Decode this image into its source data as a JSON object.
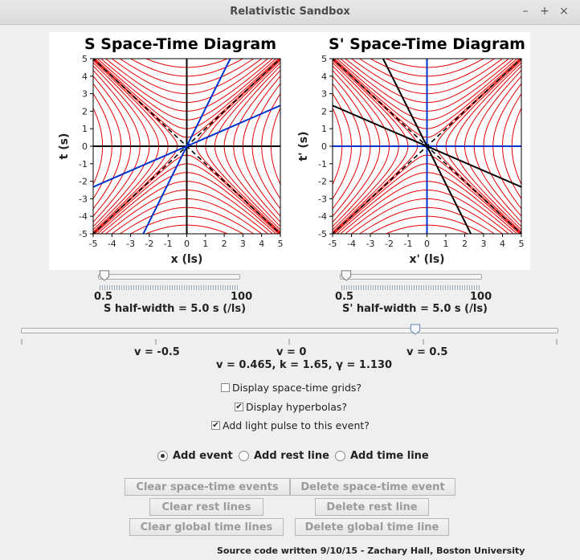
{
  "window": {
    "title": "Relativistic Sandbox",
    "controls": [
      "–",
      "+",
      "×"
    ]
  },
  "colors": {
    "hyperbola": "#e60000",
    "blue_axis": "#0033cc",
    "black_axis": "#000000",
    "frame": "#ffffff"
  },
  "chart_data": [
    {
      "type": "line",
      "title": "S Space-Time Diagram",
      "xlabel": "x (ls)",
      "ylabel": "t (s)",
      "xlim": [
        -5,
        5
      ],
      "ylim": [
        -5,
        5
      ],
      "xticks": [
        "-5",
        "-4",
        "-3",
        "-2",
        "-1",
        "0",
        "1",
        "2",
        "3",
        "4",
        "5"
      ],
      "yticks": [
        "5",
        "4",
        "3",
        "2",
        "1",
        "0",
        "-1",
        "-2",
        "-3",
        "-4",
        "-5"
      ],
      "velocity": 0.465,
      "hyperbola_levels": [
        0.5,
        1,
        1.5,
        2,
        2.5,
        3,
        3.5,
        4,
        4.5
      ],
      "light_cone": "dashed-black",
      "rest_axes": "black",
      "moving_axes": "blue"
    },
    {
      "type": "line",
      "title": "S' Space-Time Diagram",
      "xlabel": "x' (ls)",
      "ylabel": "t' (s)",
      "xlim": [
        -5,
        5
      ],
      "ylim": [
        -5,
        5
      ],
      "xticks": [
        "-5",
        "-4",
        "-3",
        "-2",
        "-1",
        "0",
        "1",
        "2",
        "3",
        "4",
        "5"
      ],
      "yticks": [
        "5",
        "4",
        "3",
        "2",
        "1",
        "0",
        "-1",
        "-2",
        "-3",
        "-4",
        "-5"
      ],
      "velocity": -0.465,
      "hyperbola_levels": [
        0.5,
        1,
        1.5,
        2,
        2.5,
        3,
        3.5,
        4,
        4.5
      ],
      "light_cone": "dashed-black",
      "rest_axes": "blue",
      "moving_axes": "black"
    }
  ],
  "sliders": {
    "s_halfwidth": {
      "min_label": "0.5",
      "max_label": "100",
      "caption": "S half-width = 5.0 s (/ls)",
      "value": 5.0,
      "min": 0.5,
      "max": 100
    },
    "sp_halfwidth": {
      "min_label": "0.5",
      "max_label": "100",
      "caption": "S' half-width = 5.0 s (/ls)",
      "value": 5.0,
      "min": 0.5,
      "max": 100
    },
    "velocity": {
      "labels": [
        "v = -0.5",
        "v = 0",
        "v = 0.5"
      ],
      "value": 0.465,
      "min": -1,
      "max": 1
    }
  },
  "status": {
    "readout": "v =  0.465, k =  1.65, γ =  1.130"
  },
  "options": {
    "grids": {
      "label": "Display space-time grids?",
      "checked": false
    },
    "hyperbolas": {
      "label": "Display hyperbolas?",
      "checked": true
    },
    "light_pulse": {
      "label": "Add light pulse to this event?",
      "checked": true
    }
  },
  "modes": [
    {
      "label": "Add event",
      "selected": true
    },
    {
      "label": "Add rest line",
      "selected": false
    },
    {
      "label": "Add time line",
      "selected": false
    }
  ],
  "buttons": {
    "clear_events": "Clear space-time events",
    "delete_event": "Delete space-time event",
    "clear_rest": "Clear rest lines",
    "delete_rest": "Delete rest line",
    "clear_time": "Clear global time lines",
    "delete_time": "Delete global time line"
  },
  "footer": "Source code written 9/10/15 - Zachary Hall, Boston University"
}
